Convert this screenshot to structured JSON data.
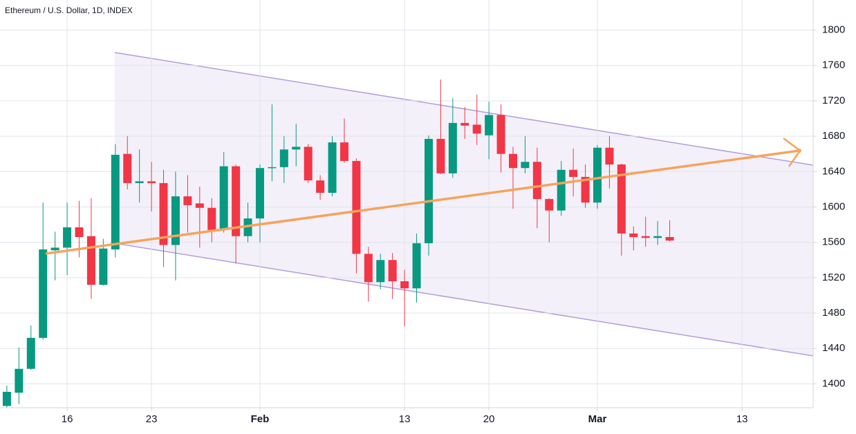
{
  "chart_data": {
    "type": "candlestick",
    "title": "Ethereum / U.S. Dollar, 1D, INDEX",
    "up_color": "#089981",
    "down_color": "#f23645",
    "open": [
      1375,
      1390,
      1417,
      1452,
      1551,
      1554,
      1577,
      1567,
      1512,
      1552,
      1660,
      1627,
      1629,
      1627,
      1557,
      1612,
      1604,
      1599,
      1574,
      1646,
      1567,
      1587,
      1644,
      1645,
      1665,
      1668,
      1630,
      1616,
      1673,
      1652,
      1547,
      1515,
      1540,
      1516,
      1508,
      1559,
      1677,
      1638,
      1695,
      1693,
      1681,
      1704,
      1660,
      1644,
      1651,
      1609,
      1596,
      1642,
      1634,
      1605,
      1667,
      1648,
      1570,
      1567,
      1565,
      1566
    ],
    "high": [
      1398,
      1441,
      1466,
      1605,
      1572,
      1605,
      1607,
      1610,
      1564,
      1671,
      1680,
      1665,
      1651,
      1642,
      1640,
      1636,
      1623,
      1610,
      1662,
      1648,
      1605,
      1648,
      1716,
      1680,
      1694,
      1671,
      1636,
      1680,
      1700,
      1655,
      1555,
      1547,
      1548,
      1529,
      1570,
      1681,
      1744,
      1723,
      1713,
      1727,
      1719,
      1716,
      1668,
      1680,
      1667,
      1610,
      1652,
      1666,
      1648,
      1670,
      1680,
      1649,
      1578,
      1589,
      1584,
      1585
    ],
    "low": [
      1373,
      1377,
      1416,
      1450,
      1517,
      1523,
      1543,
      1496,
      1511,
      1543,
      1620,
      1605,
      1595,
      1532,
      1517,
      1571,
      1554,
      1560,
      1571,
      1536,
      1560,
      1560,
      1629,
      1627,
      1646,
      1627,
      1608,
      1612,
      1650,
      1525,
      1493,
      1507,
      1496,
      1465,
      1492,
      1545,
      1637,
      1633,
      1677,
      1670,
      1654,
      1639,
      1598,
      1638,
      1576,
      1560,
      1590,
      1612,
      1599,
      1598,
      1621,
      1545,
      1551,
      1555,
      1557,
      1561
    ],
    "close": [
      1391,
      1417,
      1452,
      1552,
      1554,
      1577,
      1566,
      1512,
      1553,
      1659,
      1627,
      1629,
      1627,
      1557,
      1612,
      1602,
      1599,
      1574,
      1646,
      1567,
      1587,
      1644,
      1645,
      1665,
      1668,
      1630,
      1616,
      1673,
      1652,
      1547,
      1515,
      1540,
      1516,
      1508,
      1559,
      1677,
      1638,
      1695,
      1692,
      1683,
      1704,
      1660,
      1644,
      1651,
      1609,
      1596,
      1642,
      1634,
      1605,
      1667,
      1648,
      1570,
      1566,
      1565,
      1567,
      1562
    ],
    "xlim": [
      -0.57,
      66.9
    ],
    "xticks": [
      {
        "value": 5,
        "label": "16"
      },
      {
        "value": 12,
        "label": "23"
      },
      {
        "value": 21,
        "label": "Feb"
      },
      {
        "value": 33,
        "label": "13"
      },
      {
        "value": 40,
        "label": "20"
      },
      {
        "value": 49,
        "label": "Mar"
      },
      {
        "value": 61,
        "label": "13"
      }
    ],
    "ylim": [
      1373,
      1834
    ],
    "yticks": [
      1400,
      1440,
      1480,
      1520,
      1560,
      1600,
      1640,
      1680,
      1720,
      1760,
      1800
    ],
    "grid": true
  }
}
